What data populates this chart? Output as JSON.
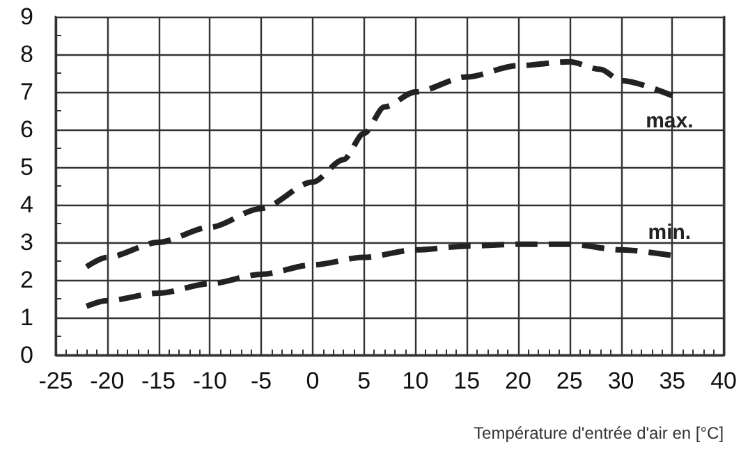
{
  "chart_data": {
    "type": "line",
    "xlabel": "Température d'entrée d'air en [°C]",
    "xlim": [
      -25,
      40
    ],
    "xticks": [
      -25,
      -20,
      -15,
      -10,
      -5,
      0,
      5,
      10,
      15,
      20,
      25,
      30,
      35,
      40
    ],
    "ylim": [
      0,
      9
    ],
    "yticks": [
      0,
      1,
      2,
      3,
      4,
      5,
      6,
      7,
      8,
      9
    ],
    "grid": true,
    "marker": "none",
    "line_style": "dashed",
    "series": [
      {
        "name": "max.",
        "color": "#222222",
        "x": [
          -22,
          -20,
          -15,
          -10,
          -5,
          0,
          3,
          5,
          7,
          10,
          15,
          20,
          25,
          28,
          30,
          35
        ],
        "values": [
          2.35,
          2.6,
          3.0,
          3.4,
          3.9,
          4.6,
          5.2,
          5.9,
          6.6,
          7.0,
          7.4,
          7.7,
          7.8,
          7.6,
          7.3,
          6.9
        ]
      },
      {
        "name": "min.",
        "color": "#222222",
        "x": [
          -22,
          -20,
          -15,
          -10,
          -5,
          0,
          5,
          10,
          15,
          20,
          25,
          30,
          35
        ],
        "values": [
          1.3,
          1.45,
          1.65,
          1.9,
          2.15,
          2.4,
          2.6,
          2.8,
          2.9,
          2.95,
          2.95,
          2.8,
          2.65
        ]
      }
    ]
  }
}
